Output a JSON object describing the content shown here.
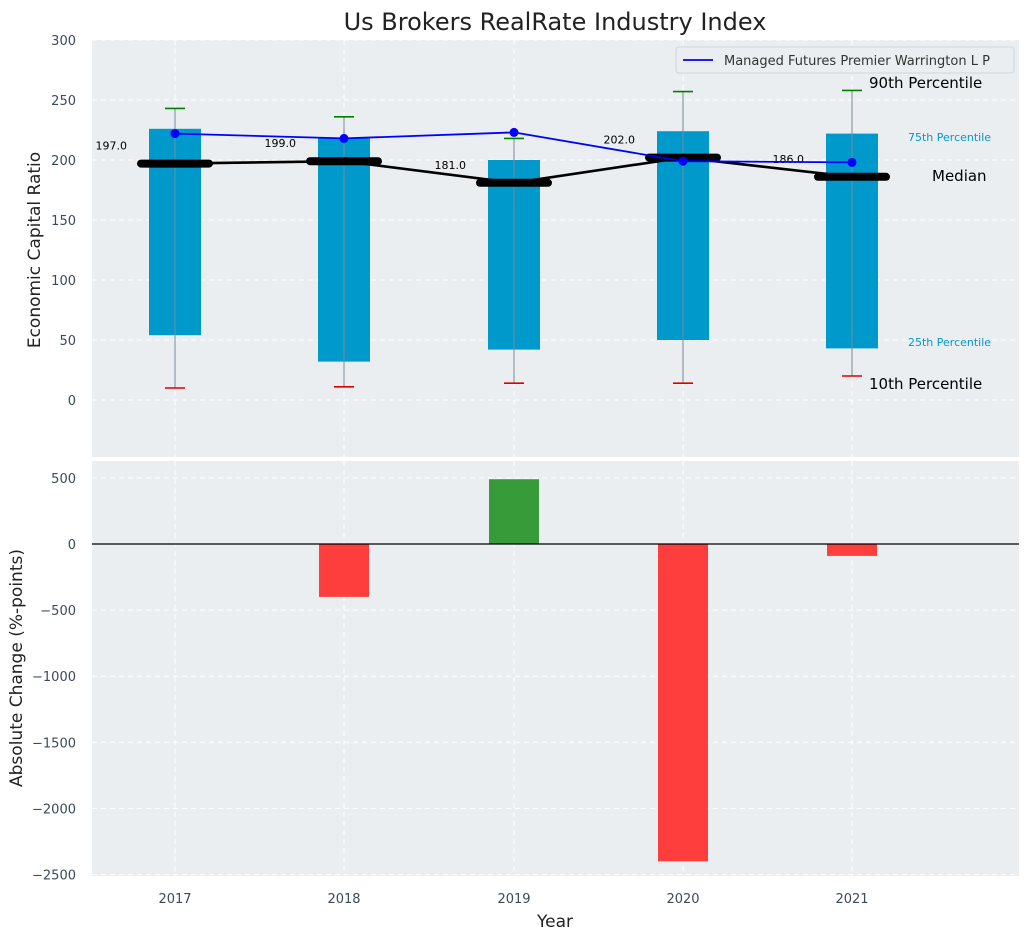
{
  "chart_data": [
    {
      "type": "bar",
      "title": "Us Brokers RealRate Industry Index",
      "ylabel": "Economic Capital Ratio",
      "ylim": [
        -45,
        300
      ],
      "yticks": [
        0,
        50,
        100,
        150,
        200,
        250,
        300
      ],
      "categories": [
        "2017",
        "2018",
        "2019",
        "2020",
        "2021"
      ],
      "p10": [
        10,
        11,
        14,
        14,
        20
      ],
      "p25": [
        54,
        32,
        42,
        50,
        43
      ],
      "median": [
        197,
        199,
        181,
        202,
        186
      ],
      "p75": [
        226,
        218,
        200,
        224,
        222
      ],
      "p90": [
        243,
        236,
        218,
        257,
        258
      ],
      "median_labels": [
        "197.0",
        "199.0",
        "181.0",
        "202.0",
        "186.0"
      ],
      "company": {
        "name": "Managed Futures Premier Warrington L P",
        "values": [
          222,
          218,
          223,
          199,
          198
        ]
      },
      "annotations": {
        "p90": "90th Percentile",
        "p75": "75th Percentile",
        "median": "Median",
        "p25": "25th Percentile",
        "p10": "10th Percentile"
      },
      "legend_position": "top-right",
      "grid": true,
      "colors": {
        "bar": "#0099cc",
        "company_line": "#0000ff",
        "median_line": "#000000",
        "p90_cap": "#008000",
        "p10_cap": "#dd0000",
        "background": "#eaeef0"
      }
    },
    {
      "type": "bar",
      "xlabel": "Year",
      "ylabel": "Absolute Change (%-points)",
      "ylim": [
        -2550,
        650
      ],
      "yticks": [
        -2500,
        -2000,
        -1500,
        -1000,
        -500,
        0,
        500
      ],
      "categories": [
        "2017",
        "2018",
        "2019",
        "2020",
        "2021"
      ],
      "values": [
        0,
        -400,
        490,
        -2400,
        -90
      ],
      "grid": true,
      "colors": {
        "positive": "#2e962e",
        "negative": "#ff3333"
      }
    }
  ]
}
